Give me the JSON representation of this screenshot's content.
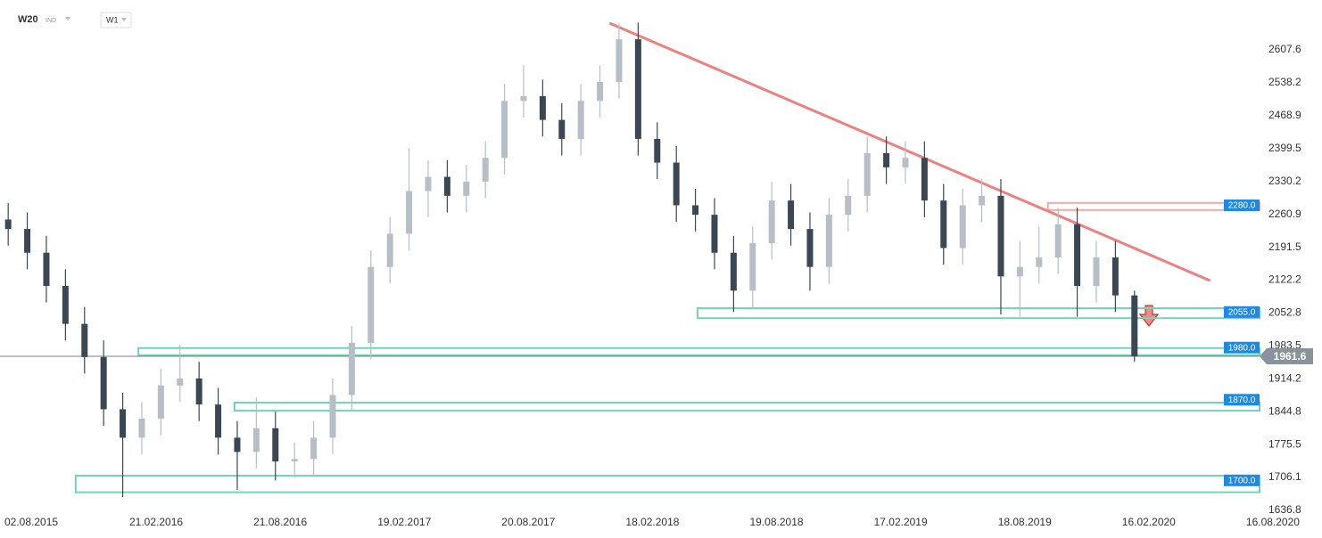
{
  "header": {
    "symbol": "W20",
    "market": "IND",
    "interval": "W1"
  },
  "chart_data": {
    "type": "candlestick",
    "x": [
      "2015-07-19",
      "2015-08-16",
      "2015-09-13",
      "2015-10-11",
      "2015-11-08",
      "2015-12-06",
      "2016-01-03",
      "2016-01-31",
      "2016-02-28",
      "2016-03-27",
      "2016-04-24",
      "2016-05-22",
      "2016-06-19",
      "2016-07-17",
      "2016-08-14",
      "2016-09-11",
      "2016-10-09",
      "2016-11-06",
      "2016-12-04",
      "2017-01-01",
      "2017-01-29",
      "2017-02-26",
      "2017-03-26",
      "2017-04-23",
      "2017-05-21",
      "2017-06-18",
      "2017-07-16",
      "2017-08-13",
      "2017-09-10",
      "2017-10-08",
      "2017-11-05",
      "2017-12-03",
      "2017-12-31",
      "2018-01-28",
      "2018-02-25",
      "2018-03-25",
      "2018-04-22",
      "2018-05-20",
      "2018-06-17",
      "2018-07-15",
      "2018-08-12",
      "2018-09-09",
      "2018-10-07",
      "2018-11-04",
      "2018-12-02",
      "2018-12-30",
      "2019-01-27",
      "2019-02-24",
      "2019-03-24",
      "2019-04-21",
      "2019-05-19",
      "2019-06-16",
      "2019-07-14",
      "2019-08-11",
      "2019-09-08",
      "2019-10-06",
      "2019-11-03",
      "2019-12-01",
      "2019-12-29",
      "2020-01-26"
    ],
    "open": [
      2250,
      2230,
      2180,
      2110,
      2030,
      1960,
      1850,
      1790,
      1830,
      1900,
      1915,
      1860,
      1790,
      1760,
      1810,
      1740,
      1745,
      1790,
      1880,
      1990,
      2150,
      2220,
      2310,
      2340,
      2300,
      2330,
      2380,
      2500,
      2510,
      2460,
      2420,
      2500,
      2540,
      2630,
      2420,
      2370,
      2280,
      2260,
      2180,
      2100,
      2200,
      2290,
      2230,
      2150,
      2260,
      2300,
      2390,
      2360,
      2380,
      2290,
      2190,
      2280,
      2300,
      2130,
      2150,
      2170,
      2240,
      2110,
      2170,
      2090
    ],
    "high": [
      2285,
      2265,
      2215,
      2145,
      2065,
      1995,
      1885,
      1865,
      1935,
      1985,
      1950,
      1895,
      1825,
      1875,
      1845,
      1780,
      1825,
      1915,
      2025,
      2185,
      2255,
      2400,
      2375,
      2375,
      2365,
      2415,
      2535,
      2575,
      2545,
      2495,
      2535,
      2575,
      2664,
      2665,
      2455,
      2405,
      2315,
      2295,
      2215,
      2235,
      2330,
      2325,
      2265,
      2295,
      2335,
      2425,
      2425,
      2415,
      2415,
      2325,
      2315,
      2335,
      2335,
      2205,
      2235,
      2275,
      2275,
      2205,
      2205,
      2100
    ],
    "low": [
      2195,
      2145,
      2075,
      1995,
      1925,
      1815,
      1665,
      1755,
      1795,
      1865,
      1825,
      1755,
      1680,
      1725,
      1700,
      1705,
      1710,
      1755,
      1845,
      1955,
      2115,
      2185,
      2255,
      2265,
      2265,
      2295,
      2345,
      2465,
      2425,
      2385,
      2385,
      2465,
      2505,
      2385,
      2335,
      2245,
      2225,
      2145,
      2055,
      2065,
      2165,
      2195,
      2100,
      2115,
      2225,
      2265,
      2325,
      2325,
      2255,
      2155,
      2155,
      2245,
      2050,
      2045,
      2115,
      2135,
      2045,
      2075,
      2055,
      1950
    ],
    "close": [
      2230,
      2180,
      2110,
      2030,
      1960,
      1850,
      1790,
      1830,
      1900,
      1915,
      1860,
      1790,
      1760,
      1810,
      1740,
      1745,
      1790,
      1880,
      1990,
      2150,
      2220,
      2310,
      2340,
      2300,
      2330,
      2380,
      2500,
      2510,
      2460,
      2420,
      2500,
      2540,
      2630,
      2420,
      2370,
      2280,
      2260,
      2180,
      2100,
      2200,
      2290,
      2230,
      2150,
      2260,
      2300,
      2390,
      2360,
      2380,
      2290,
      2190,
      2280,
      2300,
      2130,
      2150,
      2170,
      2240,
      2110,
      2170,
      2090,
      1961.6
    ],
    "up_color": "#b7bec6",
    "down_color": "#3b4853",
    "xlim": [
      "2015-07-07",
      "2020-08-03"
    ],
    "xticks": [
      {
        "value": "2015-08-02",
        "label": "02.08.2015"
      },
      {
        "value": "2016-02-21",
        "label": "21.02.2016"
      },
      {
        "value": "2016-08-21",
        "label": "21.08.2016"
      },
      {
        "value": "2017-02-19",
        "label": "19.02.2017"
      },
      {
        "value": "2017-08-20",
        "label": "20.08.2017"
      },
      {
        "value": "2018-02-18",
        "label": "18.02.2018"
      },
      {
        "value": "2018-08-19",
        "label": "19.08.2018"
      },
      {
        "value": "2019-02-17",
        "label": "17.02.2019"
      },
      {
        "value": "2019-08-18",
        "label": "18.08.2019"
      },
      {
        "value": "2020-02-16",
        "label": "16.02.2020"
      },
      {
        "value": "2020-08-16",
        "label": "16.08.2020"
      }
    ],
    "ylim": [
      1633.0,
      2712.8
    ],
    "yticks": [
      2607.6,
      2538.2,
      2468.9,
      2399.5,
      2330.2,
      2260.9,
      2191.5,
      2122.2,
      2052.8,
      1983.5,
      1914.2,
      1844.8,
      1775.5,
      1706.1,
      1636.8
    ],
    "zones": [
      {
        "value": 2280,
        "label": "2280.0",
        "range": [
          2270,
          2285
        ],
        "from": "2019-09-21",
        "color": "#f2a9a9"
      },
      {
        "value": 2055,
        "label": "2055.0",
        "range": [
          2042,
          2063
        ],
        "from": "2018-04-25",
        "color": "#6fd6b6"
      },
      {
        "value": 1980,
        "label": "1980.0",
        "range": [
          1964,
          1979
        ],
        "from": "2016-01-26",
        "color": "#6fd6b6"
      },
      {
        "value": 1870,
        "label": "1870.0",
        "range": [
          1847,
          1864
        ],
        "from": "2016-06-15",
        "color": "#6fd6b6"
      },
      {
        "value": 1700,
        "label": "1700.0",
        "range": [
          1675,
          1710
        ],
        "from": "2015-10-26",
        "color": "#6fd6b6"
      }
    ],
    "trendline": {
      "x": [
        "2017-12-17",
        "2020-05-16"
      ],
      "y": [
        2664,
        2121
      ],
      "color": "#ef8080"
    },
    "last_price": 1961.6
  }
}
